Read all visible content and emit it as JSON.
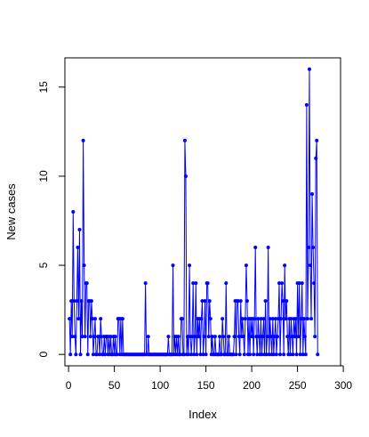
{
  "chart_data": {
    "type": "line",
    "title": "",
    "xlabel": "Index",
    "ylabel": "New cases",
    "xlim": [
      -4,
      297
    ],
    "ylim": [
      -0.64,
      16.64
    ],
    "xticks": [
      0,
      50,
      100,
      150,
      200,
      250,
      300
    ],
    "yticks": [
      0,
      5,
      10,
      15
    ],
    "grid": false,
    "legend": "none",
    "color": "#0000ff",
    "series": [
      {
        "points": [
          [
            1,
            2
          ],
          [
            2,
            0
          ],
          [
            3,
            3
          ],
          [
            4,
            1
          ],
          [
            5,
            8
          ],
          [
            6,
            3
          ],
          [
            7,
            1
          ],
          [
            8,
            0
          ],
          [
            9,
            3
          ],
          [
            10,
            6
          ],
          [
            11,
            2
          ],
          [
            12,
            7
          ],
          [
            13,
            0
          ],
          [
            14,
            3
          ],
          [
            15,
            1
          ],
          [
            16,
            12
          ],
          [
            17,
            5
          ],
          [
            18,
            1
          ],
          [
            19,
            4
          ],
          [
            20,
            4
          ],
          [
            21,
            0
          ],
          [
            22,
            3
          ],
          [
            23,
            3
          ],
          [
            24,
            1
          ],
          [
            25,
            3
          ],
          [
            26,
            2
          ],
          [
            27,
            0
          ],
          [
            28,
            1
          ],
          [
            29,
            2
          ],
          [
            30,
            0
          ],
          [
            31,
            0
          ],
          [
            32,
            1
          ],
          [
            33,
            1
          ],
          [
            34,
            0
          ],
          [
            35,
            2
          ],
          [
            36,
            1
          ],
          [
            37,
            0
          ],
          [
            38,
            0
          ],
          [
            39,
            1
          ],
          [
            40,
            0
          ],
          [
            41,
            1
          ],
          [
            42,
            1
          ],
          [
            43,
            0
          ],
          [
            44,
            1
          ],
          [
            45,
            0
          ],
          [
            46,
            1
          ],
          [
            47,
            0
          ],
          [
            48,
            0
          ],
          [
            49,
            1
          ],
          [
            50,
            0
          ],
          [
            51,
            1
          ],
          [
            52,
            0
          ],
          [
            53,
            0
          ],
          [
            54,
            2
          ],
          [
            55,
            2
          ],
          [
            56,
            0
          ],
          [
            57,
            2
          ],
          [
            58,
            0
          ],
          [
            59,
            2
          ],
          [
            60,
            0
          ],
          [
            61,
            0
          ],
          [
            62,
            0
          ],
          [
            63,
            0
          ],
          [
            64,
            0
          ],
          [
            65,
            0
          ],
          [
            66,
            0
          ],
          [
            67,
            0
          ],
          [
            68,
            0
          ],
          [
            69,
            0
          ],
          [
            70,
            0
          ],
          [
            71,
            0
          ],
          [
            72,
            0
          ],
          [
            73,
            0
          ],
          [
            74,
            0
          ],
          [
            75,
            0
          ],
          [
            76,
            0
          ],
          [
            77,
            0
          ],
          [
            78,
            0
          ],
          [
            79,
            0
          ],
          [
            80,
            0
          ],
          [
            81,
            0
          ],
          [
            82,
            0
          ],
          [
            83,
            0
          ],
          [
            84,
            4
          ],
          [
            85,
            0
          ],
          [
            86,
            0
          ],
          [
            87,
            1
          ],
          [
            88,
            0
          ],
          [
            89,
            0
          ],
          [
            90,
            0
          ],
          [
            91,
            0
          ],
          [
            92,
            0
          ],
          [
            93,
            0
          ],
          [
            94,
            0
          ],
          [
            95,
            0
          ],
          [
            96,
            0
          ],
          [
            97,
            0
          ],
          [
            98,
            0
          ],
          [
            99,
            0
          ],
          [
            100,
            0
          ],
          [
            101,
            0
          ],
          [
            102,
            0
          ],
          [
            103,
            0
          ],
          [
            104,
            0
          ],
          [
            105,
            0
          ],
          [
            106,
            0
          ],
          [
            107,
            0
          ],
          [
            108,
            0
          ],
          [
            109,
            1
          ],
          [
            110,
            0
          ],
          [
            111,
            0
          ],
          [
            112,
            0
          ],
          [
            113,
            0
          ],
          [
            114,
            5
          ],
          [
            115,
            0
          ],
          [
            116,
            1
          ],
          [
            117,
            0
          ],
          [
            118,
            1
          ],
          [
            119,
            0
          ],
          [
            120,
            1
          ],
          [
            121,
            0
          ],
          [
            122,
            0
          ],
          [
            123,
            2
          ],
          [
            124,
            2
          ],
          [
            125,
            0
          ],
          [
            126,
            0
          ],
          [
            127,
            12
          ],
          [
            128,
            10
          ],
          [
            129,
            0
          ],
          [
            130,
            1
          ],
          [
            131,
            0
          ],
          [
            132,
            5
          ],
          [
            133,
            1
          ],
          [
            134,
            0
          ],
          [
            135,
            1
          ],
          [
            136,
            4
          ],
          [
            137,
            0
          ],
          [
            138,
            1
          ],
          [
            139,
            4
          ],
          [
            140,
            0
          ],
          [
            141,
            2
          ],
          [
            142,
            1
          ],
          [
            143,
            2
          ],
          [
            144,
            0
          ],
          [
            145,
            2
          ],
          [
            146,
            3
          ],
          [
            147,
            0
          ],
          [
            148,
            1
          ],
          [
            149,
            3
          ],
          [
            150,
            0
          ],
          [
            151,
            4
          ],
          [
            152,
            4
          ],
          [
            153,
            1
          ],
          [
            154,
            3
          ],
          [
            155,
            2
          ],
          [
            156,
            0
          ],
          [
            157,
            1
          ],
          [
            158,
            0
          ],
          [
            159,
            0
          ],
          [
            160,
            1
          ],
          [
            161,
            0
          ],
          [
            162,
            0
          ],
          [
            163,
            0
          ],
          [
            164,
            0
          ],
          [
            165,
            1
          ],
          [
            166,
            0
          ],
          [
            167,
            0
          ],
          [
            168,
            2
          ],
          [
            169,
            1
          ],
          [
            170,
            0
          ],
          [
            171,
            0
          ],
          [
            172,
            4
          ],
          [
            173,
            0
          ],
          [
            174,
            0
          ],
          [
            175,
            1
          ],
          [
            176,
            0
          ],
          [
            177,
            0
          ],
          [
            178,
            0
          ],
          [
            179,
            0
          ],
          [
            180,
            0
          ],
          [
            181,
            1
          ],
          [
            182,
            3
          ],
          [
            183,
            0
          ],
          [
            184,
            3
          ],
          [
            185,
            3
          ],
          [
            186,
            1
          ],
          [
            187,
            0
          ],
          [
            188,
            3
          ],
          [
            189,
            1
          ],
          [
            190,
            2
          ],
          [
            191,
            1
          ],
          [
            192,
            0
          ],
          [
            193,
            2
          ],
          [
            194,
            5
          ],
          [
            195,
            3
          ],
          [
            196,
            0
          ],
          [
            197,
            2
          ],
          [
            198,
            0
          ],
          [
            199,
            2
          ],
          [
            200,
            1
          ],
          [
            201,
            2
          ],
          [
            202,
            0
          ],
          [
            203,
            2
          ],
          [
            204,
            6
          ],
          [
            205,
            1
          ],
          [
            206,
            0
          ],
          [
            207,
            2
          ],
          [
            208,
            1
          ],
          [
            209,
            0
          ],
          [
            210,
            2
          ],
          [
            211,
            0
          ],
          [
            212,
            1
          ],
          [
            213,
            2
          ],
          [
            214,
            0
          ],
          [
            215,
            3
          ],
          [
            216,
            0
          ],
          [
            217,
            1
          ],
          [
            218,
            6
          ],
          [
            219,
            0
          ],
          [
            220,
            2
          ],
          [
            221,
            1
          ],
          [
            222,
            0
          ],
          [
            223,
            2
          ],
          [
            224,
            0
          ],
          [
            225,
            1
          ],
          [
            226,
            2
          ],
          [
            227,
            0
          ],
          [
            228,
            1
          ],
          [
            229,
            2
          ],
          [
            230,
            4
          ],
          [
            231,
            0
          ],
          [
            232,
            2
          ],
          [
            233,
            4
          ],
          [
            234,
            3
          ],
          [
            235,
            0
          ],
          [
            236,
            5
          ],
          [
            237,
            2
          ],
          [
            238,
            3
          ],
          [
            239,
            1
          ],
          [
            240,
            0
          ],
          [
            241,
            2
          ],
          [
            242,
            0
          ],
          [
            243,
            2
          ],
          [
            244,
            1
          ],
          [
            245,
            0
          ],
          [
            246,
            2
          ],
          [
            247,
            1
          ],
          [
            248,
            2
          ],
          [
            249,
            0
          ],
          [
            250,
            4
          ],
          [
            251,
            1
          ],
          [
            252,
            4
          ],
          [
            253,
            0
          ],
          [
            254,
            2
          ],
          [
            255,
            4
          ],
          [
            256,
            0
          ],
          [
            257,
            2
          ],
          [
            258,
            1
          ],
          [
            259,
            0
          ],
          [
            260,
            14
          ],
          [
            261,
            2
          ],
          [
            262,
            6
          ],
          [
            263,
            16
          ],
          [
            264,
            5
          ],
          [
            265,
            2
          ],
          [
            266,
            9
          ],
          [
            267,
            6
          ],
          [
            268,
            4
          ],
          [
            269,
            1
          ],
          [
            270,
            11
          ],
          [
            271,
            12
          ],
          [
            272,
            0
          ]
        ]
      }
    ]
  }
}
